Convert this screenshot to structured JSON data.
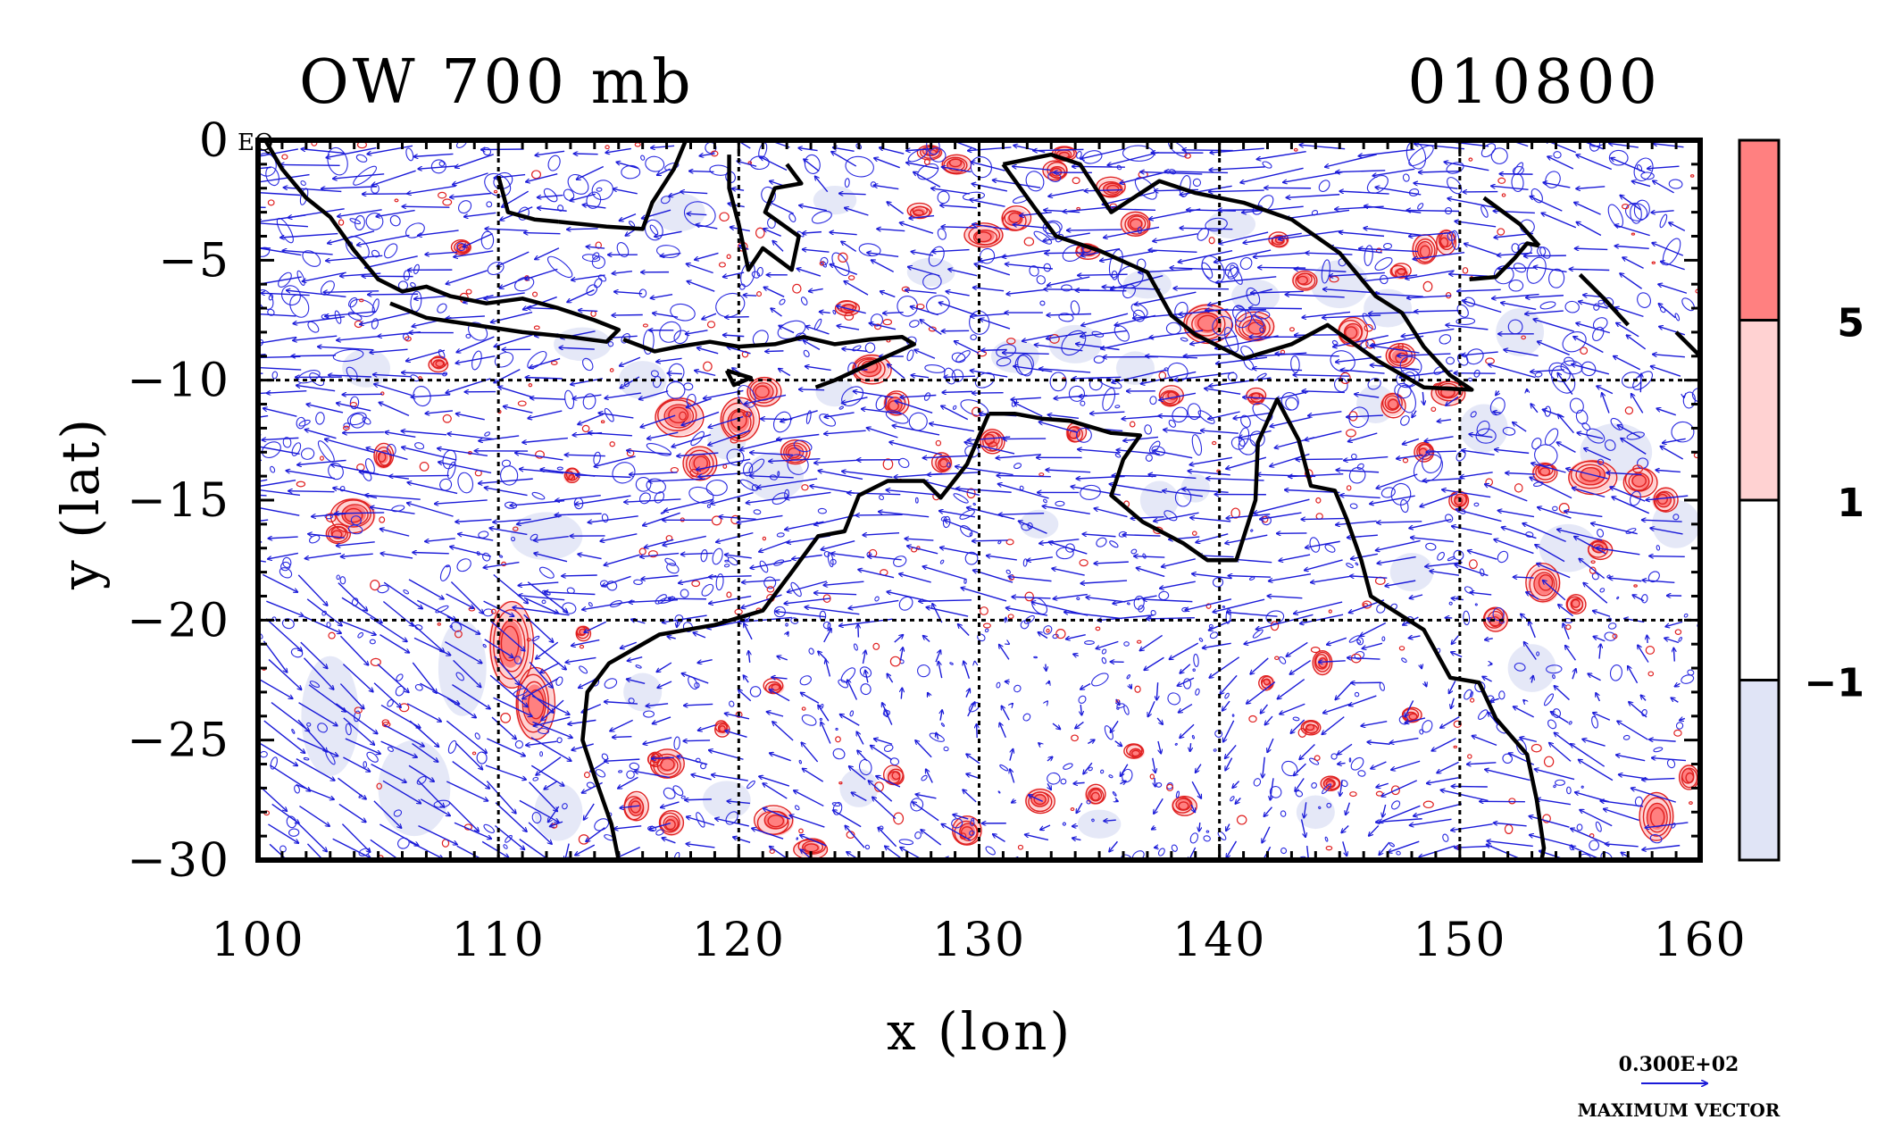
{
  "chart_data": {
    "type": "contour-vector-map",
    "title_left": "OW 700 mb",
    "title_right": "010800",
    "xlabel": "x (lon)",
    "ylabel": "y (lat)",
    "xlim": [
      100,
      160
    ],
    "ylim": [
      -30,
      0
    ],
    "xticks": [
      100,
      110,
      120,
      130,
      140,
      150,
      160
    ],
    "yticks": [
      0,
      -5,
      -10,
      -15,
      -20,
      -25,
      -30
    ],
    "xtick_labels": [
      "100",
      "110",
      "120",
      "130",
      "140",
      "150",
      "160"
    ],
    "ytick_labels": [
      "0",
      "−5",
      "−10",
      "−15",
      "−20",
      "−25",
      "−30"
    ],
    "grid_lon": [
      110,
      120,
      130,
      140,
      150
    ],
    "grid_lat": [
      -10,
      -20
    ],
    "eq_label": "EQ",
    "colorbar": {
      "levels": [
        -1,
        1,
        5
      ],
      "level_labels": [
        "−1",
        "1",
        "5"
      ],
      "colors": [
        "#e0e4f6",
        "#ffffff",
        "#ffd2d2",
        "#ff8080"
      ]
    },
    "vector_reference": {
      "value_label": "0.300E+02",
      "caption": "MAXIMUM VECTOR"
    },
    "coastlines": [
      [
        [
          100.3,
          0
        ],
        [
          101,
          -1.2
        ],
        [
          102,
          -2.4
        ],
        [
          103,
          -3.2
        ],
        [
          104,
          -4.6
        ],
        [
          105,
          -5.8
        ],
        [
          106,
          -6.3
        ],
        [
          107,
          -6.1
        ],
        [
          108,
          -6.5
        ],
        [
          109.5,
          -6.8
        ],
        [
          111,
          -6.6
        ],
        [
          112.5,
          -7
        ],
        [
          114,
          -7.5
        ],
        [
          115,
          -7.9
        ],
        [
          114.5,
          -8.4
        ],
        [
          113,
          -8.2
        ],
        [
          111,
          -8
        ],
        [
          109,
          -7.7
        ],
        [
          107,
          -7.4
        ],
        [
          105.5,
          -6.8
        ]
      ],
      [
        [
          115.2,
          -8.3
        ],
        [
          116.5,
          -8.8
        ],
        [
          117.5,
          -8.6
        ],
        [
          118.8,
          -8.4
        ],
        [
          120,
          -8.6
        ],
        [
          121.5,
          -8.5
        ],
        [
          122.7,
          -8.2
        ],
        [
          124,
          -8.5
        ],
        [
          125.5,
          -8.3
        ],
        [
          126.8,
          -8.2
        ],
        [
          127.3,
          -8.5
        ],
        [
          125.5,
          -9.3
        ],
        [
          124,
          -10
        ],
        [
          123.2,
          -10.3
        ]
      ],
      [
        [
          119.5,
          -9.6
        ],
        [
          120.5,
          -9.9
        ],
        [
          119.8,
          -10.2
        ],
        [
          119.5,
          -9.6
        ]
      ],
      [
        [
          122,
          -1
        ],
        [
          122.6,
          -1.8
        ],
        [
          121.5,
          -2
        ],
        [
          121.1,
          -3
        ],
        [
          122.5,
          -4
        ],
        [
          122.2,
          -5.4
        ],
        [
          121,
          -4.5
        ],
        [
          120.4,
          -5.4
        ],
        [
          120,
          -3.5
        ],
        [
          119.6,
          -2
        ],
        [
          119.6,
          -0.6
        ]
      ],
      [
        [
          112.5,
          -3.4
        ],
        [
          114.5,
          -3.6
        ],
        [
          116,
          -3.7
        ],
        [
          116.4,
          -2.6
        ],
        [
          117.3,
          -1.2
        ],
        [
          117.8,
          0
        ]
      ],
      [
        [
          110,
          -1.5
        ],
        [
          110.4,
          -3
        ],
        [
          111.5,
          -3.3
        ],
        [
          112.5,
          -3.4
        ]
      ],
      [
        [
          131,
          -1
        ],
        [
          133,
          -0.6
        ],
        [
          134.2,
          -1
        ],
        [
          135.5,
          -3
        ],
        [
          137.5,
          -1.7
        ],
        [
          139,
          -2.2
        ],
        [
          141,
          -2.6
        ],
        [
          143,
          -3.3
        ],
        [
          145,
          -4.7
        ],
        [
          146.5,
          -6.5
        ],
        [
          147.6,
          -7.2
        ],
        [
          148.5,
          -8.6
        ],
        [
          149.6,
          -9.8
        ],
        [
          150.5,
          -10.4
        ],
        [
          148.5,
          -10.3
        ],
        [
          146.6,
          -9.2
        ],
        [
          144.5,
          -7.7
        ],
        [
          143,
          -8.5
        ],
        [
          141,
          -9.1
        ],
        [
          139,
          -8.1
        ],
        [
          138,
          -7.3
        ],
        [
          137,
          -5.5
        ],
        [
          135,
          -4.6
        ],
        [
          133.2,
          -4
        ],
        [
          132.3,
          -2.8
        ],
        [
          131,
          -1
        ]
      ],
      [
        [
          130.4,
          -11.4
        ],
        [
          131.5,
          -11.4
        ],
        [
          132.6,
          -11.6
        ],
        [
          133.8,
          -11.7
        ],
        [
          135.5,
          -12.2
        ],
        [
          136.7,
          -12.3
        ],
        [
          136,
          -13.3
        ],
        [
          135.5,
          -14.8
        ],
        [
          136.8,
          -15.9
        ],
        [
          138.5,
          -16.8
        ],
        [
          139.5,
          -17.5
        ],
        [
          140.7,
          -17.5
        ],
        [
          141.5,
          -15
        ],
        [
          141.6,
          -12.6
        ],
        [
          142.4,
          -10.8
        ],
        [
          143.3,
          -12.5
        ],
        [
          143.8,
          -14.4
        ],
        [
          144.8,
          -14.6
        ],
        [
          145.3,
          -15.8
        ],
        [
          145.9,
          -17.5
        ],
        [
          146.3,
          -19
        ],
        [
          148.5,
          -20.4
        ],
        [
          149.6,
          -22.4
        ],
        [
          150.8,
          -22.6
        ],
        [
          151.5,
          -24.1
        ],
        [
          152.8,
          -25.6
        ],
        [
          153.2,
          -27.5
        ],
        [
          153.5,
          -29.5
        ],
        [
          153.4,
          -30
        ]
      ],
      [
        [
          130.4,
          -11.4
        ],
        [
          129.5,
          -13.5
        ],
        [
          128.4,
          -14.9
        ],
        [
          127.7,
          -14.2
        ],
        [
          126.2,
          -14.2
        ],
        [
          125,
          -14.8
        ],
        [
          124.4,
          -16.3
        ],
        [
          123.3,
          -16.5
        ],
        [
          122.2,
          -18
        ],
        [
          121,
          -19.6
        ],
        [
          119,
          -20.2
        ],
        [
          116.7,
          -20.6
        ],
        [
          114.6,
          -21.8
        ],
        [
          113.7,
          -23
        ],
        [
          113.5,
          -25
        ],
        [
          114,
          -26.5
        ],
        [
          114.7,
          -28.5
        ],
        [
          115,
          -30
        ]
      ],
      [
        [
          150.4,
          -5.8
        ],
        [
          151.5,
          -5.7
        ],
        [
          152.3,
          -4.9
        ],
        [
          152.8,
          -4.3
        ],
        [
          153.3,
          -4.4
        ]
      ],
      [
        [
          151,
          -2.4
        ],
        [
          152.5,
          -3.5
        ],
        [
          153.3,
          -4.4
        ]
      ],
      [
        [
          155,
          -5.6
        ],
        [
          156,
          -6.6
        ],
        [
          157,
          -7.7
        ]
      ],
      [
        [
          159,
          -8
        ],
        [
          160,
          -9
        ]
      ]
    ],
    "red_blobs": [
      [
        104,
        -15.6,
        0.9,
        0.7
      ],
      [
        103.3,
        -16.4,
        0.5,
        0.4
      ],
      [
        105.2,
        -13.2,
        0.4,
        0.5
      ],
      [
        110.5,
        -21,
        0.9,
        1.8
      ],
      [
        111.5,
        -23.5,
        0.8,
        1.5
      ],
      [
        117.5,
        -11.5,
        1,
        0.8
      ],
      [
        120,
        -11.7,
        0.8,
        0.9
      ],
      [
        118.4,
        -13.5,
        0.7,
        0.7
      ],
      [
        122.3,
        -13,
        0.6,
        0.5
      ],
      [
        121,
        -10.5,
        0.7,
        0.6
      ],
      [
        125.5,
        -9.5,
        0.8,
        0.6
      ],
      [
        126.5,
        -11,
        0.5,
        0.5
      ],
      [
        130.5,
        -12.5,
        0.5,
        0.5
      ],
      [
        128.5,
        -13.5,
        0.4,
        0.4
      ],
      [
        134,
        -12.2,
        0.4,
        0.4
      ],
      [
        139.5,
        -7.6,
        1,
        0.8
      ],
      [
        141.5,
        -7.8,
        0.8,
        0.6
      ],
      [
        138,
        -10.7,
        0.5,
        0.4
      ],
      [
        143.5,
        -5.8,
        0.5,
        0.4
      ],
      [
        145.5,
        -8,
        0.6,
        0.6
      ],
      [
        147.5,
        -9,
        0.6,
        0.5
      ],
      [
        149.5,
        -10.5,
        0.7,
        0.5
      ],
      [
        147.2,
        -11,
        0.5,
        0.5
      ],
      [
        148.5,
        -13,
        0.4,
        0.4
      ],
      [
        150,
        -15,
        0.4,
        0.4
      ],
      [
        153.5,
        -13.8,
        0.5,
        0.4
      ],
      [
        155.5,
        -14,
        1,
        0.7
      ],
      [
        157.5,
        -14.2,
        0.7,
        0.6
      ],
      [
        158.5,
        -15,
        0.5,
        0.5
      ],
      [
        155.8,
        -17,
        0.5,
        0.4
      ],
      [
        153.5,
        -18.5,
        0.7,
        0.8
      ],
      [
        151.5,
        -20,
        0.5,
        0.5
      ],
      [
        154.8,
        -19.3,
        0.4,
        0.4
      ],
      [
        158.2,
        -28.2,
        0.7,
        1
      ],
      [
        159.5,
        -26.5,
        0.4,
        0.5
      ],
      [
        135.5,
        -2,
        0.6,
        0.4
      ],
      [
        133.2,
        -1.3,
        0.5,
        0.4
      ],
      [
        136.5,
        -3.5,
        0.6,
        0.5
      ],
      [
        130.2,
        -4,
        0.8,
        0.5
      ],
      [
        131.5,
        -3.3,
        0.6,
        0.5
      ],
      [
        134.5,
        -4.6,
        0.5,
        0.3
      ],
      [
        127.5,
        -3,
        0.5,
        0.3
      ],
      [
        129,
        -1,
        0.6,
        0.4
      ],
      [
        128,
        -0.5,
        0.5,
        0.3
      ],
      [
        133.5,
        -0.6,
        0.5,
        0.3
      ],
      [
        148.5,
        -4.6,
        0.5,
        0.6
      ],
      [
        149.4,
        -4.2,
        0.4,
        0.5
      ],
      [
        147.5,
        -5.5,
        0.4,
        0.3
      ],
      [
        142.5,
        -4.2,
        0.4,
        0.3
      ],
      [
        121.5,
        -22.8,
        0.4,
        0.3
      ],
      [
        117,
        -26,
        0.7,
        0.6
      ],
      [
        115.7,
        -27.8,
        0.5,
        0.6
      ],
      [
        117.2,
        -28.5,
        0.5,
        0.5
      ],
      [
        121.5,
        -28.4,
        0.8,
        0.6
      ],
      [
        123,
        -29.5,
        0.7,
        0.4
      ],
      [
        126.5,
        -26.5,
        0.4,
        0.4
      ],
      [
        129.5,
        -28.8,
        0.6,
        0.6
      ],
      [
        132.5,
        -27.5,
        0.6,
        0.5
      ],
      [
        134.8,
        -27.3,
        0.4,
        0.4
      ],
      [
        136.5,
        -25.5,
        0.4,
        0.3
      ],
      [
        138.5,
        -27.7,
        0.5,
        0.4
      ],
      [
        143.8,
        -24.5,
        0.4,
        0.3
      ],
      [
        144.6,
        -26.8,
        0.4,
        0.3
      ],
      [
        148,
        -24,
        0.4,
        0.3
      ],
      [
        144.3,
        -21.8,
        0.4,
        0.5
      ],
      [
        142,
        -22.6,
        0.3,
        0.3
      ],
      [
        108.5,
        -4.5,
        0.4,
        0.3
      ],
      [
        107.5,
        -9.3,
        0.4,
        0.3
      ],
      [
        113,
        -14,
        0.3,
        0.3
      ],
      [
        116.5,
        -25.8,
        0.3,
        0.3
      ],
      [
        119.3,
        -24.5,
        0.3,
        0.3
      ],
      [
        141.5,
        -10.7,
        0.4,
        0.3
      ],
      [
        124.5,
        -7,
        0.5,
        0.3
      ],
      [
        113.5,
        -20.5,
        0.3,
        0.3
      ]
    ],
    "blue_blobs": [
      [
        103,
        -24,
        1.2,
        2.5
      ],
      [
        106.5,
        -27,
        1.5,
        2
      ],
      [
        108.5,
        -22,
        1,
        2
      ],
      [
        112,
        -16.5,
        1.5,
        1
      ],
      [
        104.5,
        -9.5,
        1,
        0.8
      ],
      [
        113.5,
        -8.5,
        1.2,
        0.7
      ],
      [
        116,
        -10,
        1,
        0.8
      ],
      [
        121.5,
        -14,
        1.2,
        1
      ],
      [
        119.5,
        -12.5,
        0.8,
        0.8
      ],
      [
        124,
        -10.5,
        0.8,
        0.6
      ],
      [
        131.5,
        -9,
        1,
        0.7
      ],
      [
        134,
        -8.5,
        1.1,
        0.8
      ],
      [
        136.5,
        -9.5,
        0.8,
        0.7
      ],
      [
        137.5,
        -15,
        0.8,
        0.8
      ],
      [
        139,
        -14.5,
        0.6,
        0.6
      ],
      [
        141.5,
        -6.5,
        1,
        0.7
      ],
      [
        145,
        -6,
        1.2,
        1
      ],
      [
        147,
        -7,
        1,
        0.8
      ],
      [
        152.5,
        -8,
        1,
        1
      ],
      [
        151,
        -12,
        1,
        1
      ],
      [
        156.5,
        -13,
        1.5,
        1.2
      ],
      [
        159,
        -16,
        1,
        1
      ],
      [
        154.5,
        -17,
        1.2,
        1
      ],
      [
        153,
        -22,
        1,
        1
      ],
      [
        125,
        -27,
        0.8,
        0.8
      ],
      [
        119.5,
        -27.5,
        1,
        0.8
      ],
      [
        112.5,
        -28,
        1,
        1.2
      ],
      [
        116,
        -23,
        0.8,
        0.8
      ],
      [
        137,
        -6,
        1,
        0.6
      ],
      [
        128,
        -5.5,
        1,
        0.6
      ],
      [
        117.5,
        -3,
        1.1,
        0.8
      ],
      [
        124,
        -2.5,
        0.9,
        0.6
      ],
      [
        140.5,
        -3.5,
        1,
        0.6
      ],
      [
        146.5,
        -11,
        0.8,
        0.8
      ],
      [
        132.5,
        -16,
        0.8,
        0.6
      ],
      [
        148,
        -18,
        0.9,
        0.8
      ],
      [
        144,
        -28,
        0.8,
        0.7
      ],
      [
        135,
        -28.5,
        0.9,
        0.6
      ]
    ]
  }
}
